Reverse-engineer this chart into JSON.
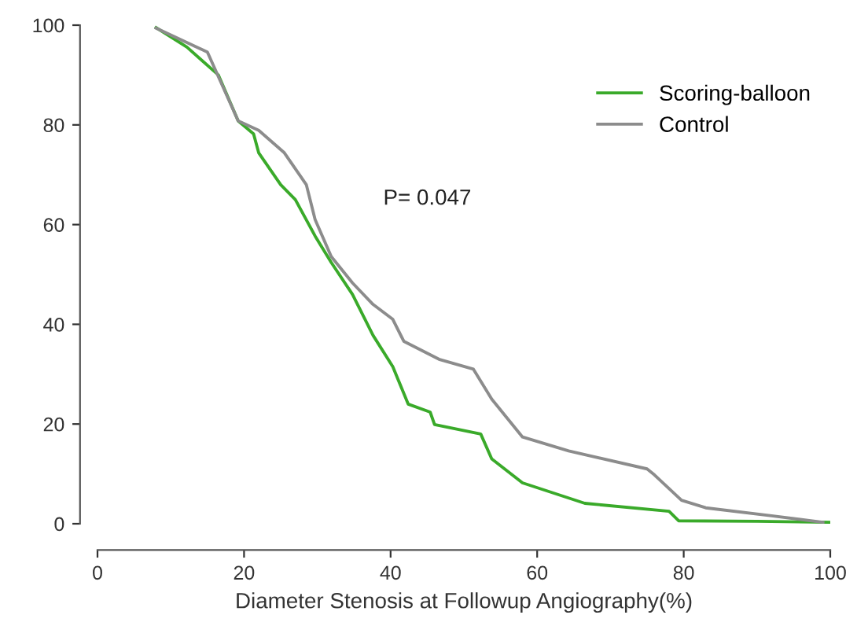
{
  "chart_data": {
    "type": "line",
    "xlabel": "Diameter Stenosis at Followup Angiography(%)",
    "xlim": [
      0,
      100
    ],
    "ylim": [
      0,
      100
    ],
    "xticks": [
      0,
      20,
      40,
      60,
      80,
      100
    ],
    "yticks": [
      0,
      20,
      40,
      60,
      80,
      100
    ],
    "grid": false,
    "legend": "top right",
    "annotations": [
      "P= 0.047"
    ],
    "series": [
      {
        "name": "Scoring-balloon",
        "color": "#3aaa2a",
        "x": [
          8,
          12.2,
          16.5,
          19.2,
          21.3,
          22,
          25,
          27,
          29.7,
          31.9,
          34.8,
          37.6,
          40.3,
          42.4,
          45.4,
          46,
          52.3,
          53.8,
          58,
          66.5,
          78,
          79.3,
          90,
          100
        ],
        "values": [
          99.5,
          95.6,
          90,
          80.8,
          78.2,
          74.4,
          68,
          65,
          57.7,
          52.4,
          46,
          37.8,
          31.5,
          24,
          22.4,
          19.9,
          18,
          13,
          8.2,
          4.1,
          2.5,
          0.6,
          0.5,
          0.3
        ]
      },
      {
        "name": "Control",
        "color": "#8c8c8c",
        "x": [
          8,
          15,
          19.2,
          22,
          25.5,
          28.5,
          29.7,
          31.9,
          34.8,
          37.6,
          40.3,
          41.8,
          46.6,
          51.3,
          53.8,
          58,
          64.3,
          75,
          76,
          79.7,
          83,
          92,
          99
        ],
        "values": [
          99.4,
          94.6,
          80.8,
          78.9,
          74.4,
          68,
          61,
          53.6,
          48.3,
          44,
          41,
          36.6,
          33,
          31,
          25,
          17.4,
          14.6,
          11,
          9.8,
          4.7,
          3.2,
          1.6,
          0.3
        ]
      }
    ]
  }
}
